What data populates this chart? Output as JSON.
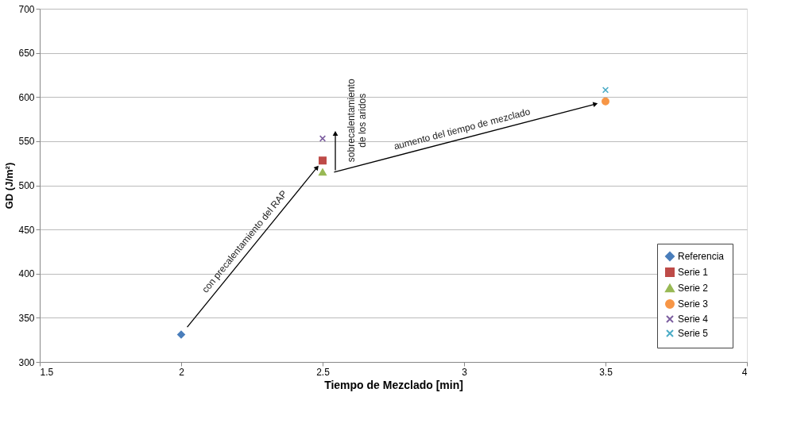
{
  "chart_data": {
    "type": "scatter",
    "xlabel": "Tiempo de Mezclado  [min]",
    "ylabel": "GD (J/m²)",
    "xlim": [
      1.5,
      4
    ],
    "xticks": [
      1.5,
      2,
      2.5,
      3,
      3.5,
      4
    ],
    "ylim": [
      300,
      700
    ],
    "yticks": [
      300,
      350,
      400,
      450,
      500,
      550,
      600,
      650,
      700
    ],
    "grid": "y",
    "legend": "bottom right",
    "series": [
      {
        "name": "Referencia",
        "color": "#4a7ebb",
        "marker": "diamond",
        "x": [
          2
        ],
        "values": [
          331
        ]
      },
      {
        "name": "Serie 1",
        "color": "#be4b48",
        "marker": "square",
        "x": [
          2.5
        ],
        "values": [
          528
        ]
      },
      {
        "name": "Serie 2",
        "color": "#98b954",
        "marker": "triangle",
        "x": [
          2.5
        ],
        "values": [
          515
        ]
      },
      {
        "name": "Serie 3",
        "color": "#f79646",
        "marker": "circle",
        "x": [
          3.5
        ],
        "values": [
          595
        ]
      },
      {
        "name": "Serie 4",
        "color": "#7d5fa0",
        "marker": "cross",
        "x": [
          2.5
        ],
        "values": [
          553
        ]
      },
      {
        "name": "Serie 5",
        "color": "#4bacc6",
        "marker": "cross",
        "x": [
          3.5
        ],
        "values": [
          608
        ]
      }
    ],
    "annotations": [
      "con precalentamiento del RAP",
      "sobrecalentamiento\nde los aridos",
      "aumento del tiempo de mezclado"
    ]
  }
}
